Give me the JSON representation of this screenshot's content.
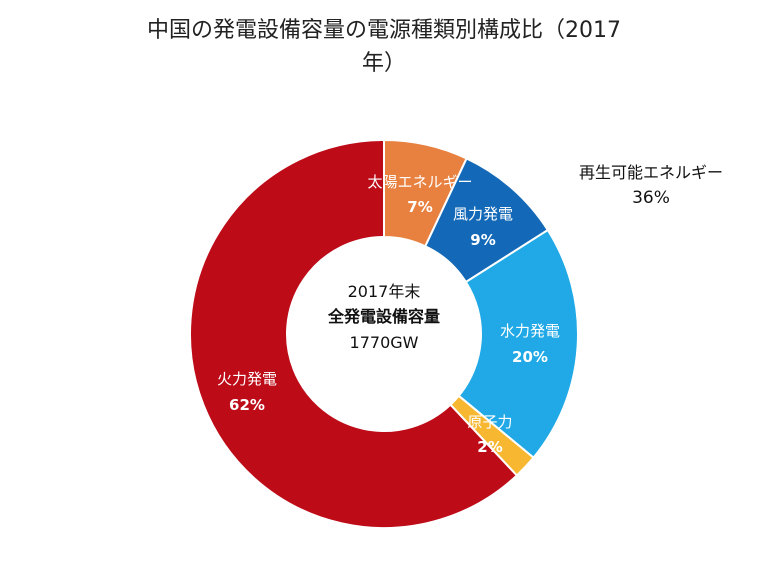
{
  "chart_data": {
    "type": "pie",
    "title_line1": "中国の発電設備容量の電源種類別構成比（2017",
    "title_line2": "年）",
    "center_label": {
      "line1": "2017年末",
      "line2": "全発電設備容量",
      "line3": "1770GW"
    },
    "group_annotation": {
      "label": "再生可能エネルギー",
      "value": "36%"
    },
    "slices": [
      {
        "name": "太陽エネルギー",
        "value": 7,
        "value_label": "7%",
        "color": "#E8803F"
      },
      {
        "name": "風力発電",
        "value": 9,
        "value_label": "9%",
        "color": "#1369B7"
      },
      {
        "name": "水力発電",
        "value": 20,
        "value_label": "20%",
        "color": "#20A9E6"
      },
      {
        "name": "原子力",
        "value": 2,
        "value_label": "2%",
        "color": "#F7B731"
      },
      {
        "name": "火力発電",
        "value": 62,
        "value_label": "62%",
        "color": "#BD0B17"
      }
    ]
  }
}
